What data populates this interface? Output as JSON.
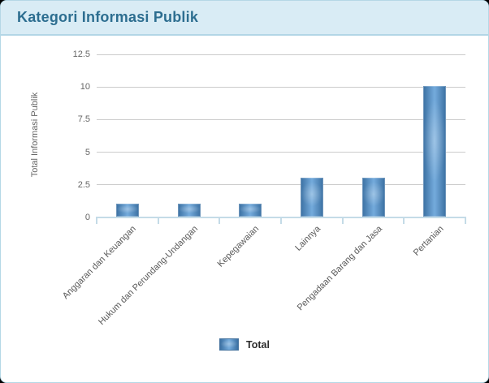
{
  "header": {
    "title": "Kategori Informasi Publik"
  },
  "chart_data": {
    "type": "bar",
    "title": "Kategori Informasi Publik",
    "categories": [
      "Anggaran dan Keuangan",
      "Hukum dan Perundang-Undangan",
      "Kepegawaian",
      "Lainnya",
      "Pengadaan Barang dan Jasa",
      "Pertanian"
    ],
    "series": [
      {
        "name": "Total",
        "values": [
          1,
          1,
          1,
          3,
          3,
          10
        ]
      }
    ],
    "xlabel": "",
    "ylabel": "Total Informasi Publik",
    "ylim": [
      0,
      12.5
    ],
    "yticks": [
      0,
      2.5,
      5,
      7.5,
      10,
      12.5
    ],
    "grid": true,
    "legend": {
      "label": "Total",
      "position": "bottom"
    }
  },
  "colors": {
    "page_bg": "#000000",
    "card_bg": "#ffffff",
    "card_border": "#b5d8e6",
    "header_bg": "#d9ecf5",
    "header_border": "#b2d6e6",
    "title_text": "#2d6e90",
    "bar_edge": "#3b70a2",
    "bar_center": "#74abdc",
    "axis_line": "#c4dbe7",
    "gridline": "#cccccc",
    "tick_text": "#666666",
    "legend_text": "#2b2b2b"
  }
}
